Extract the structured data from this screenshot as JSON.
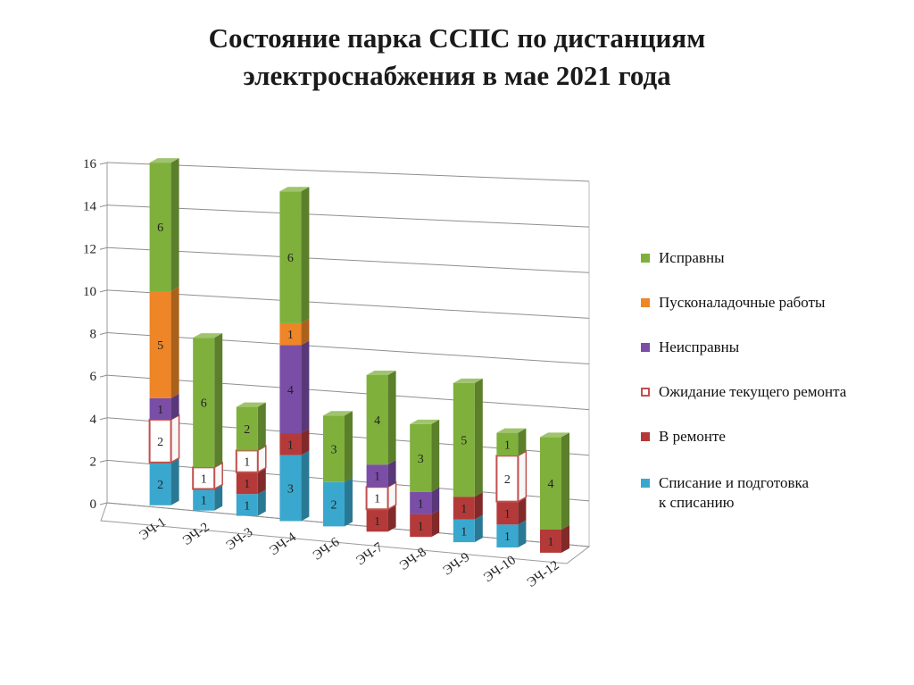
{
  "title_lines": [
    "Состояние парка ССПС по дистанциям",
    "электроснабжения в мае 2021 года"
  ],
  "chart_data": {
    "type": "bar",
    "stacked": true,
    "style": "3d",
    "categories": [
      "ЭЧ-1",
      "ЭЧ-2",
      "ЭЧ-3",
      "ЭЧ-4",
      "ЭЧ-6",
      "ЭЧ-7",
      "ЭЧ-8",
      "ЭЧ-9",
      "ЭЧ-10",
      "ЭЧ-12"
    ],
    "series": [
      {
        "name": "Списание и подготовка\nк списанию",
        "color": "#3AA8CE",
        "values": [
          2,
          1,
          1,
          3,
          2,
          0,
          0,
          1,
          1,
          0
        ]
      },
      {
        "name": "В ремонте",
        "color": "#B43A3A",
        "values": [
          0,
          0,
          1,
          1,
          0,
          1,
          1,
          1,
          1,
          1
        ]
      },
      {
        "name": "Ожидание текущего ремонта",
        "color": "#FFFFFF",
        "outline": "#C0504D",
        "values": [
          2,
          1,
          1,
          0,
          0,
          1,
          0,
          0,
          2,
          0
        ]
      },
      {
        "name": "Неисправны",
        "color": "#7A4EA6",
        "values": [
          1,
          0,
          0,
          4,
          0,
          1,
          1,
          0,
          0,
          0
        ]
      },
      {
        "name": "Пусконаладочные работы",
        "color": "#EE8526",
        "values": [
          5,
          0,
          0,
          1,
          0,
          0,
          0,
          0,
          0,
          0
        ]
      },
      {
        "name": "Исправны",
        "color": "#7FB03C",
        "values": [
          6,
          6,
          2,
          6,
          3,
          4,
          3,
          5,
          1,
          4
        ]
      }
    ],
    "legend_order": [
      5,
      4,
      3,
      2,
      1,
      0
    ],
    "y_ticks": [
      "0",
      "2",
      "4",
      "6",
      "8",
      "10",
      "12",
      "14",
      "16"
    ],
    "ylim": [
      0,
      16
    ],
    "grid": true,
    "legend_position": "right"
  }
}
